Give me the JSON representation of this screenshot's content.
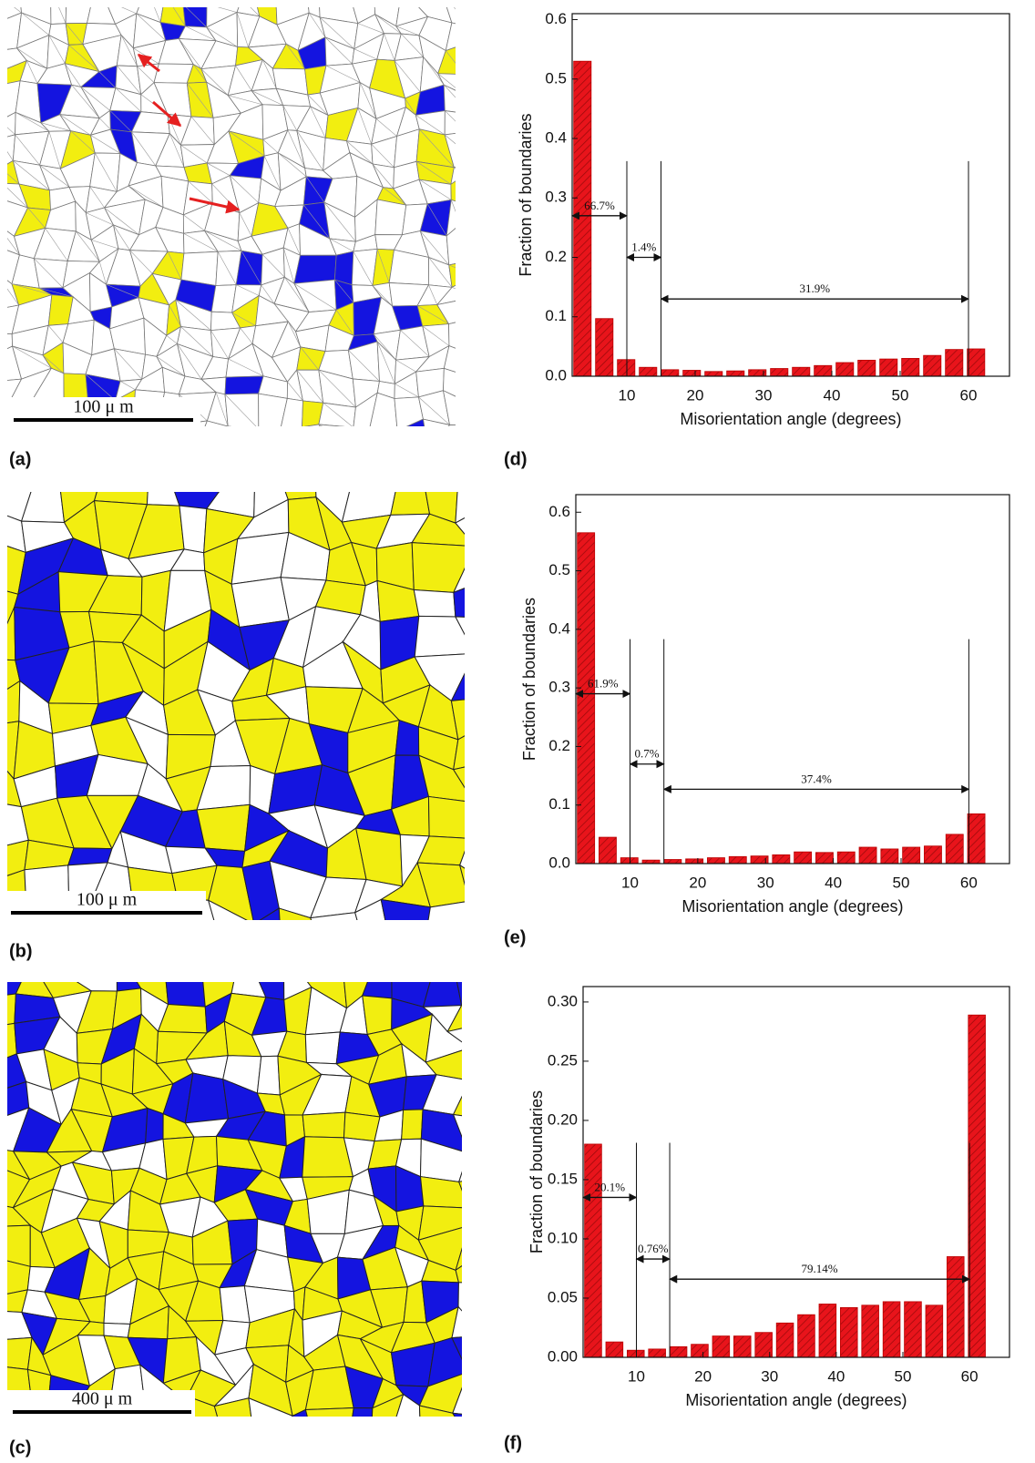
{
  "panels": [
    {
      "label": "(a)",
      "scale": "100 μ m"
    },
    {
      "label": "(b)",
      "scale": "100 μ m"
    },
    {
      "label": "(c)",
      "scale": "400 μ m"
    }
  ],
  "chart_data": [
    {
      "type": "bar",
      "label": "(d)",
      "x_label": "Misorientation angle (degrees)",
      "y_label": "Fraction of boundaries",
      "x": [
        3.5,
        6.7,
        9.9,
        13.1,
        16.3,
        19.5,
        22.7,
        25.9,
        29.1,
        32.3,
        35.5,
        38.7,
        41.9,
        45.1,
        48.3,
        51.5,
        54.7,
        57.9,
        61.1
      ],
      "values": [
        0.53,
        0.097,
        0.028,
        0.015,
        0.011,
        0.01,
        0.008,
        0.009,
        0.011,
        0.013,
        0.015,
        0.018,
        0.023,
        0.027,
        0.029,
        0.03,
        0.035,
        0.045,
        0.046
      ],
      "color": "#e8141b",
      "xlim": [
        2,
        66
      ],
      "xticks": [
        10,
        20,
        30,
        40,
        50,
        60
      ],
      "ylim": [
        0,
        0.61
      ],
      "yticks": [
        {
          "value": 0,
          "label": "0.0"
        },
        0.1,
        0.2,
        0.3,
        0.4,
        0.5,
        0.6
      ],
      "annotations": [
        {
          "text": "66.7%",
          "from": 2,
          "to": 10,
          "y": 0.27
        },
        {
          "text": "1.4%",
          "from": 10,
          "to": 15,
          "y": 0.2
        },
        {
          "text": "31.9%",
          "from": 15,
          "to": 60,
          "y": 0.13
        }
      ]
    },
    {
      "type": "bar",
      "label": "(e)",
      "x_label": "Misorientation angle (degrees)",
      "y_label": "Fraction of boundaries",
      "x": [
        3.5,
        6.7,
        9.9,
        13.1,
        16.3,
        19.5,
        22.7,
        25.9,
        29.1,
        32.3,
        35.5,
        38.7,
        41.9,
        45.1,
        48.3,
        51.5,
        54.7,
        57.9,
        61.1
      ],
      "values": [
        0.565,
        0.045,
        0.01,
        0.006,
        0.007,
        0.008,
        0.01,
        0.012,
        0.013,
        0.015,
        0.02,
        0.019,
        0.02,
        0.028,
        0.025,
        0.028,
        0.03,
        0.05,
        0.085
      ],
      "color": "#e8141b",
      "xlim": [
        2,
        66
      ],
      "xticks": [
        10,
        20,
        30,
        40,
        50,
        60
      ],
      "ylim": [
        0,
        0.63
      ],
      "yticks": [
        {
          "value": 0,
          "label": "0.0"
        },
        0.1,
        0.2,
        0.3,
        0.4,
        0.5,
        0.6
      ],
      "annotations": [
        {
          "text": "61.9%",
          "from": 2,
          "to": 10,
          "y": 0.29
        },
        {
          "text": "0.7%",
          "from": 10,
          "to": 15,
          "y": 0.17
        },
        {
          "text": "37.4%",
          "from": 15,
          "to": 60,
          "y": 0.127
        }
      ]
    },
    {
      "type": "bar",
      "label": "(f)",
      "x_label": "Misorientation angle (degrees)",
      "y_label": "Fraction of boundaries",
      "x": [
        3.5,
        6.7,
        9.9,
        13.1,
        16.3,
        19.5,
        22.7,
        25.9,
        29.1,
        32.3,
        35.5,
        38.7,
        41.9,
        45.1,
        48.3,
        51.5,
        54.7,
        57.9,
        61.1
      ],
      "values": [
        0.18,
        0.013,
        0.006,
        0.007,
        0.009,
        0.011,
        0.018,
        0.018,
        0.021,
        0.029,
        0.036,
        0.045,
        0.042,
        0.044,
        0.047,
        0.047,
        0.044,
        0.085,
        0.289
      ],
      "color": "#e8141b",
      "xlim": [
        2,
        66
      ],
      "xticks": [
        10,
        20,
        30,
        40,
        50,
        60
      ],
      "ylim": [
        0,
        0.313
      ],
      "yticks": [
        {
          "value": 0,
          "label": "0.00"
        },
        0.05,
        {
          "value": 0.1,
          "label": "0.10"
        },
        0.15,
        {
          "value": 0.2,
          "label": "0.20"
        },
        0.25,
        {
          "value": 0.3,
          "label": "0.30"
        }
      ],
      "annotations": [
        {
          "text": "20.1%",
          "from": 2,
          "to": 10,
          "y": 0.135
        },
        {
          "text": "0.76%",
          "from": 10,
          "to": 15,
          "y": 0.083
        },
        {
          "text": "79.14%",
          "from": 15,
          "to": 60,
          "y": 0.066
        }
      ]
    }
  ]
}
